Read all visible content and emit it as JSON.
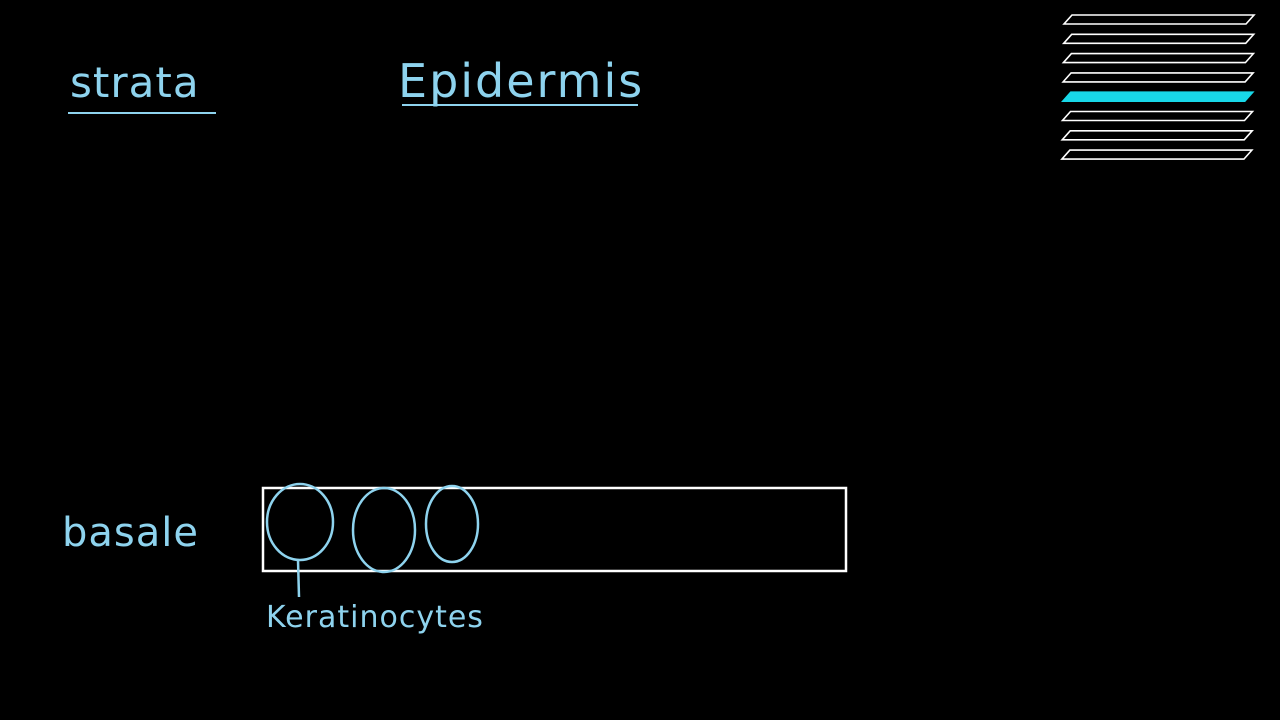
{
  "labels": {
    "strata": "strata",
    "epidermis": "Epidermis",
    "basale": "basale",
    "keratinocytes": "Keratinocytes"
  },
  "colors": {
    "background": "#000000",
    "ink": "#8ed3ee",
    "layer_outline": "#ffffff",
    "highlighted_layer": "#18d8e8"
  },
  "layer_stack": {
    "layer_count": 8,
    "highlighted_layer_index": 4
  }
}
